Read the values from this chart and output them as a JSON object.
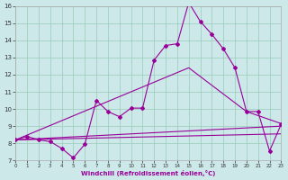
{
  "xlabel": "Windchill (Refroidissement éolien,°C)",
  "bg_color": "#cce8e8",
  "grid_color": "#99ccbb",
  "line_color": "#990099",
  "xmin": 0,
  "xmax": 23,
  "ymin": 7,
  "ymax": 16,
  "yticks": [
    7,
    8,
    9,
    10,
    11,
    12,
    13,
    14,
    15,
    16
  ],
  "xticks": [
    0,
    1,
    2,
    3,
    4,
    5,
    6,
    7,
    8,
    9,
    10,
    11,
    12,
    13,
    14,
    15,
    16,
    17,
    18,
    19,
    20,
    21,
    22,
    23
  ],
  "line_zigzag": {
    "x": [
      0,
      1,
      2,
      3,
      4,
      5,
      6,
      7,
      8,
      9,
      10,
      11,
      12,
      13,
      14,
      15,
      16,
      17,
      18,
      19,
      20,
      21,
      22,
      23
    ],
    "y": [
      8.2,
      8.4,
      8.2,
      8.1,
      7.7,
      7.15,
      7.95,
      10.5,
      9.85,
      9.55,
      10.05,
      10.05,
      12.85,
      13.7,
      13.8,
      16.2,
      15.1,
      14.35,
      13.5,
      12.4,
      9.85,
      9.85,
      7.55,
      9.1
    ]
  },
  "line_diag": {
    "x": [
      0,
      15,
      20,
      23
    ],
    "y": [
      8.2,
      12.4,
      9.85,
      9.15
    ]
  },
  "line_flat1": {
    "x": [
      0,
      23
    ],
    "y": [
      8.2,
      9.0
    ]
  },
  "line_flat2": {
    "x": [
      0,
      23
    ],
    "y": [
      8.2,
      8.55
    ]
  }
}
